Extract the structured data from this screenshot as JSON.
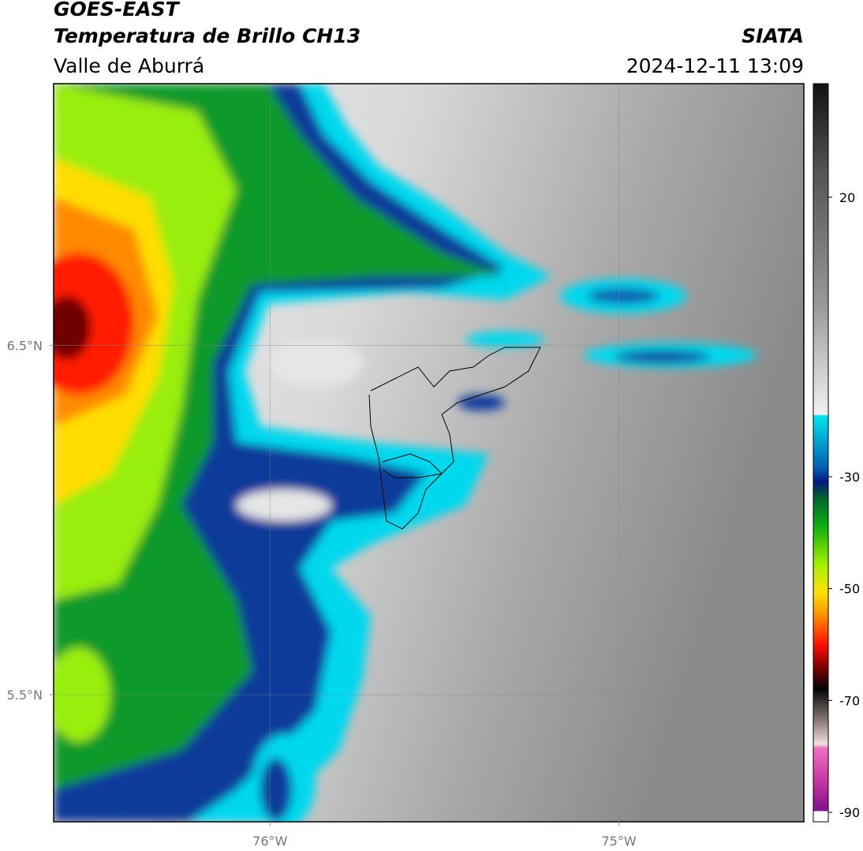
{
  "header": {
    "title": "GOES-EAST",
    "subtitle": "Temperatura de Brillo CH13",
    "region": "Valle de Aburrá",
    "source": "SIATA",
    "datetime": "2024-12-11 13:09"
  },
  "map": {
    "lon_range": [
      -76.62,
      -74.47
    ],
    "lat_range": [
      5.136,
      7.25
    ],
    "lon_ticks": [
      {
        "value": -76,
        "label": "76°W"
      },
      {
        "value": -75,
        "label": "75°W"
      }
    ],
    "lat_ticks": [
      {
        "value": 6.5,
        "label": "6.5°N"
      },
      {
        "value": 5.5,
        "label": "5.5°N"
      }
    ],
    "grid": true
  },
  "colorbar": {
    "lim": [
      -91.7,
      40.3
    ],
    "ticks": [
      20,
      -30,
      -50,
      -70,
      -90
    ]
  }
}
